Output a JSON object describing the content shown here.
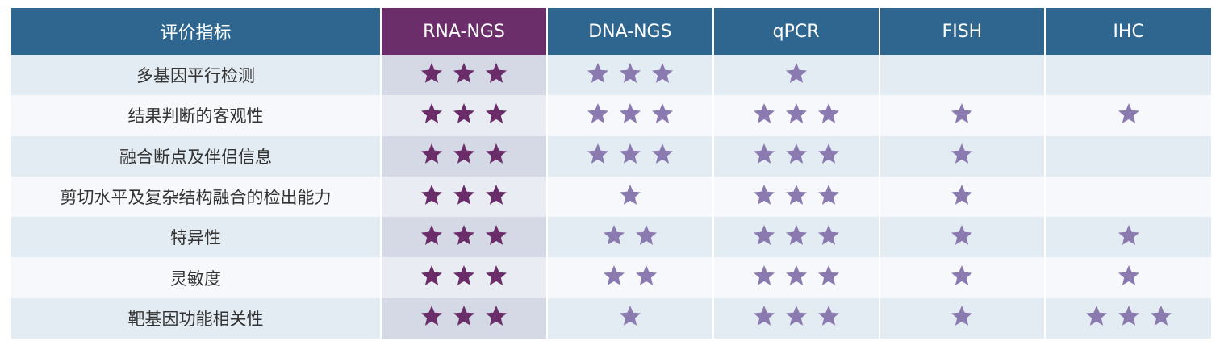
{
  "colors": {
    "header_bg": "#2f6690",
    "header_highlight_bg": "#6c2e6b",
    "star_dark": "#6b2c6a",
    "star_light": "#8a7ab0"
  },
  "icon": "star-icon",
  "headers": [
    "评价指标",
    "RNA-NGS",
    "DNA-NGS",
    "qPCR",
    "FISH",
    "IHC"
  ],
  "rows": [
    {
      "label": "多基因平行检测",
      "ratings": [
        3,
        3,
        1,
        0,
        0
      ]
    },
    {
      "label": "结果判断的客观性",
      "ratings": [
        3,
        3,
        3,
        1,
        1
      ]
    },
    {
      "label": "融合断点及伴侣信息",
      "ratings": [
        3,
        3,
        3,
        1,
        0
      ]
    },
    {
      "label": "剪切水平及复杂结构融合的检出能力",
      "ratings": [
        3,
        1,
        3,
        1,
        0
      ]
    },
    {
      "label": "特异性",
      "ratings": [
        3,
        2,
        3,
        1,
        1
      ]
    },
    {
      "label": "灵敏度",
      "ratings": [
        3,
        2,
        3,
        1,
        1
      ]
    },
    {
      "label": "靶基因功能相关性",
      "ratings": [
        3,
        1,
        3,
        1,
        3
      ]
    }
  ]
}
